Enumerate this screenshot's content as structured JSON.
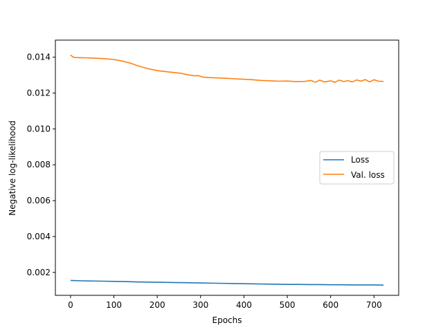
{
  "chart_data": {
    "type": "line",
    "xlabel": "Epochs",
    "ylabel": "Negative log-likelihood",
    "xlim": [
      -35,
      757
    ],
    "ylim": [
      0.00072,
      0.01495
    ],
    "xticks": [
      0,
      100,
      200,
      300,
      400,
      500,
      600,
      700
    ],
    "yticks": [
      0.002,
      0.004,
      0.006,
      0.008,
      0.01,
      0.012,
      0.014
    ],
    "ytick_labels": [
      "0.002",
      "0.004",
      "0.006",
      "0.008",
      "0.010",
      "0.012",
      "0.014"
    ],
    "grid": false,
    "legend_position": "center-right",
    "series": [
      {
        "name": "Loss",
        "color": "#1f77b4",
        "x": [
          0,
          25,
          50,
          75,
          100,
          125,
          150,
          175,
          200,
          225,
          250,
          275,
          300,
          325,
          350,
          375,
          400,
          425,
          450,
          475,
          500,
          525,
          550,
          575,
          600,
          625,
          650,
          675,
          700,
          722
        ],
        "y": [
          0.00155,
          0.00153,
          0.00152,
          0.00151,
          0.0015,
          0.00149,
          0.00147,
          0.00146,
          0.00145,
          0.00144,
          0.00143,
          0.00142,
          0.00141,
          0.0014,
          0.00139,
          0.00138,
          0.00137,
          0.00136,
          0.00135,
          0.00134,
          0.00133,
          0.00133,
          0.00132,
          0.00132,
          0.00131,
          0.00131,
          0.0013,
          0.0013,
          0.0013,
          0.00129
        ]
      },
      {
        "name": "Val. loss",
        "color": "#ff7f0e",
        "x": [
          0,
          5,
          10,
          25,
          50,
          75,
          100,
          120,
          140,
          160,
          180,
          200,
          225,
          240,
          255,
          270,
          285,
          295,
          305,
          320,
          340,
          360,
          375,
          390,
          400,
          420,
          440,
          460,
          480,
          500,
          520,
          540,
          555,
          565,
          575,
          585,
          600,
          610,
          620,
          630,
          640,
          650,
          660,
          670,
          680,
          690,
          700,
          710,
          722
        ],
        "y": [
          0.01412,
          0.01402,
          0.01398,
          0.01397,
          0.01395,
          0.01392,
          0.01387,
          0.01378,
          0.01365,
          0.01348,
          0.01335,
          0.01325,
          0.01318,
          0.01314,
          0.0131,
          0.01302,
          0.01296,
          0.01297,
          0.01289,
          0.01286,
          0.01284,
          0.01282,
          0.0128,
          0.01278,
          0.01277,
          0.01274,
          0.0127,
          0.01268,
          0.01266,
          0.01267,
          0.01264,
          0.01265,
          0.0127,
          0.0126,
          0.01272,
          0.01262,
          0.01268,
          0.0126,
          0.01272,
          0.01264,
          0.01269,
          0.01262,
          0.01273,
          0.01266,
          0.01275,
          0.01262,
          0.01274,
          0.01266,
          0.01265
        ]
      }
    ]
  }
}
